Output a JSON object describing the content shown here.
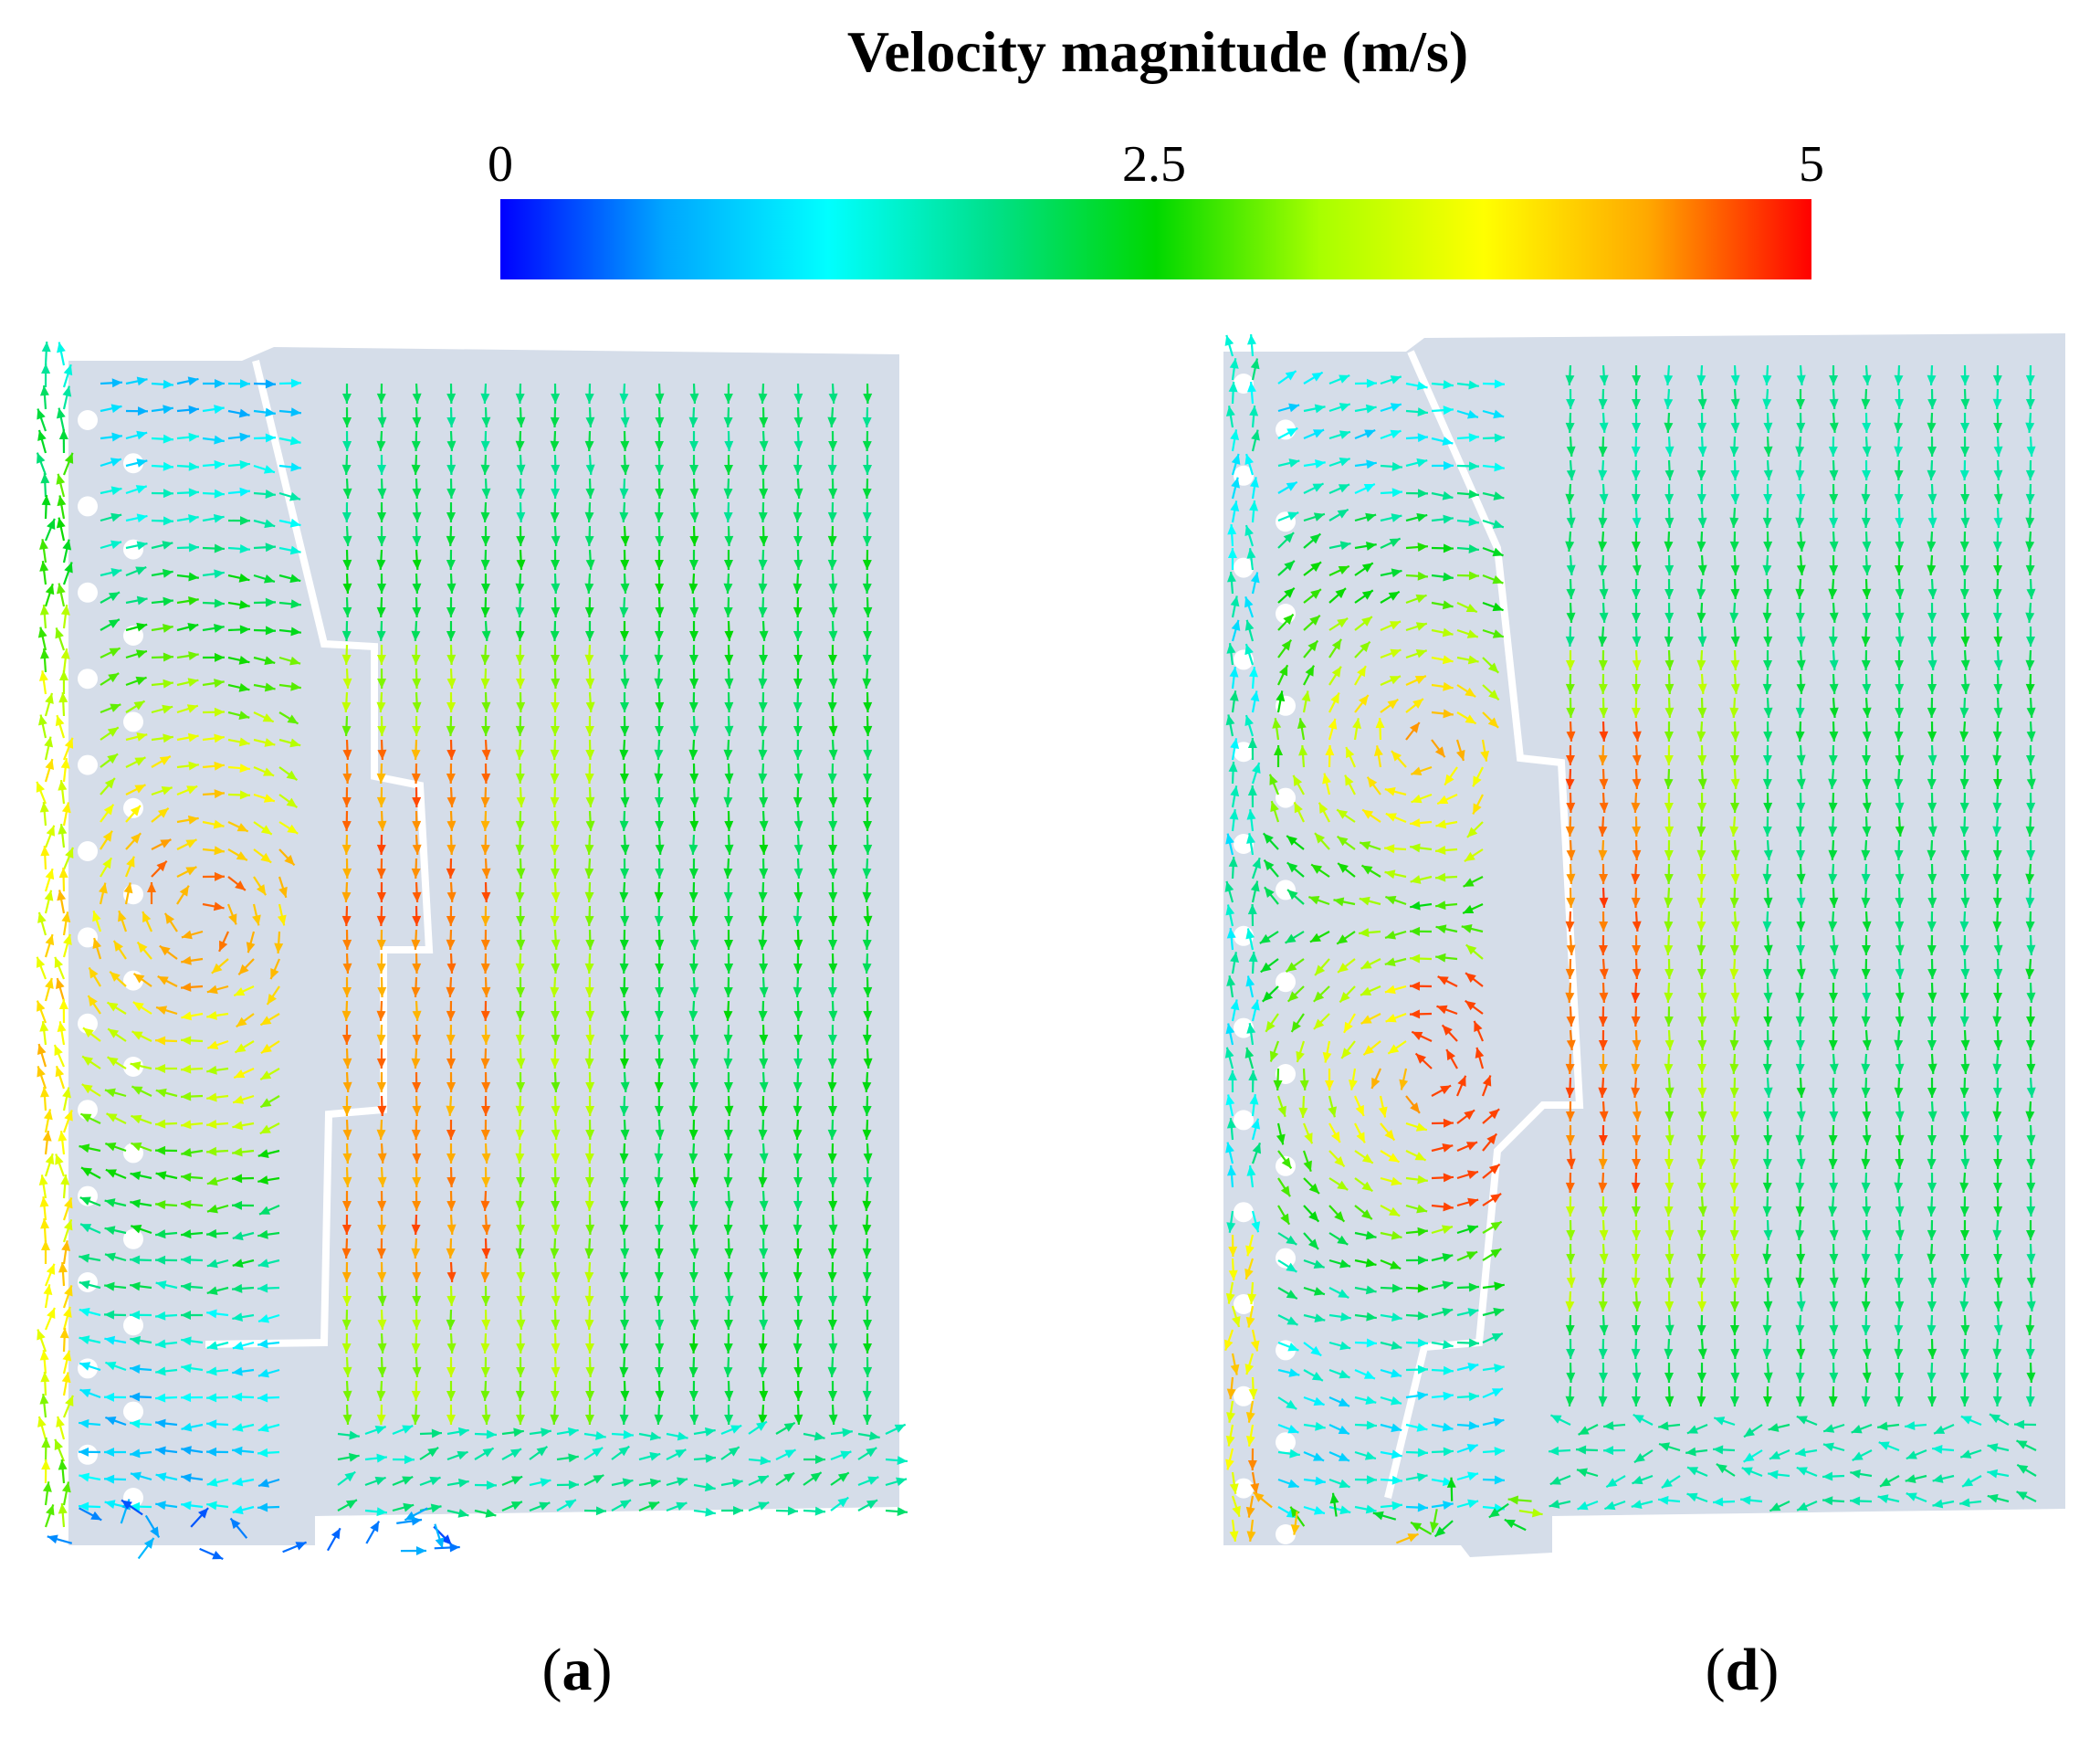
{
  "colorbar": {
    "title": "Velocity magnitude (m/s)",
    "tick_labels": [
      "0",
      "2.5",
      "5"
    ],
    "tick_values": [
      0,
      2.5,
      5
    ],
    "range": [
      0,
      5
    ],
    "colormap": [
      "#0000ff",
      "#00a6ff",
      "#00ffff",
      "#00e08a",
      "#00d800",
      "#a8ff00",
      "#ffff00",
      "#ffa800",
      "#ff0000"
    ]
  },
  "panels": [
    {
      "id": "a",
      "letter": "a",
      "paren_open": "(",
      "paren_close": ")"
    },
    {
      "id": "d",
      "letter": "d",
      "paren_open": "(",
      "paren_close": ")"
    }
  ],
  "colors": {
    "domain_fill": "#d5dde9",
    "wall": "#ffffff",
    "text": "#000000"
  }
}
